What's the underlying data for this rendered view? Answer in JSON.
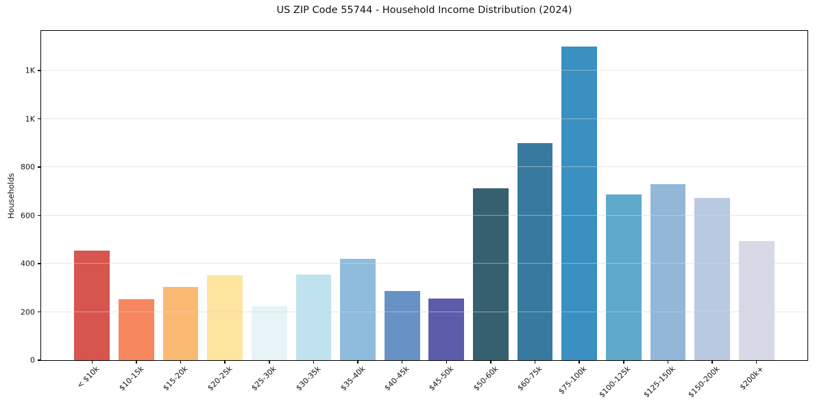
{
  "chart_data": {
    "type": "bar",
    "title": "US ZIP Code 55744 - Household Income Distribution (2024)",
    "ylabel": "Households",
    "xlabel": "",
    "categories": [
      "< $10k",
      "$10-15k",
      "$15-20k",
      "$20-25k",
      "$25-30k",
      "$30-35k",
      "$35-40k",
      "$40-45k",
      "$45-50k",
      "$50-60k",
      "$60-75k",
      "$75-100k",
      "$100-125k",
      "$125-150k",
      "$150-200k",
      "$200k+"
    ],
    "values": [
      455,
      253,
      304,
      352,
      223,
      355,
      420,
      287,
      256,
      713,
      900,
      1300,
      686,
      730,
      674,
      494
    ],
    "bar_colors": [
      "#d6554e",
      "#f6875e",
      "#fbba74",
      "#fde5a0",
      "#e7f3f7",
      "#bfe2ee",
      "#8fbcdd",
      "#6892c5",
      "#5c5caa",
      "#36606f",
      "#38799f",
      "#3990c1",
      "#5ea9cc",
      "#92b7d9",
      "#b9c9e1",
      "#d7d9e6"
    ],
    "ylim": [
      0,
      1365
    ],
    "yticks": {
      "values": [
        0,
        200,
        400,
        600,
        800,
        1000,
        1200
      ],
      "labels": [
        "0",
        "200",
        "400",
        "600",
        "800",
        "1K",
        "1K"
      ]
    },
    "grid": "horizontal, drawn on top of bars",
    "legend": "none",
    "bar_width_fraction": 0.8,
    "x_tick_rotation_deg": 45
  }
}
